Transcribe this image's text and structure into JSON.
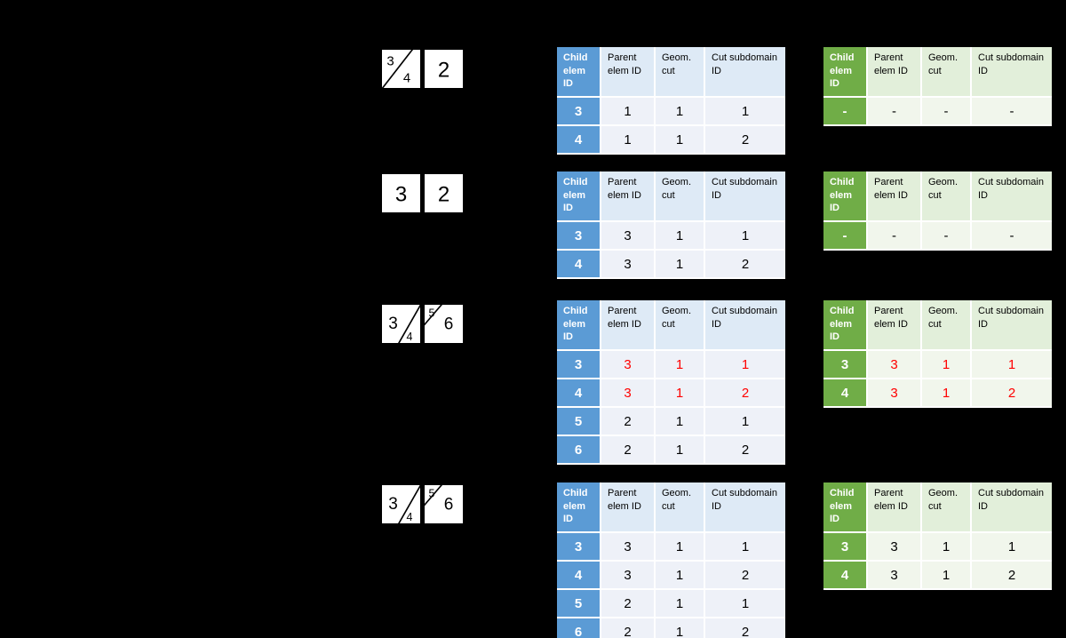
{
  "colors": {
    "background": "#000000",
    "blue_accent": "#5B9BD5",
    "blue_header_light": "#DEEAF6",
    "blue_row_light": "#EEF1F8",
    "green_accent": "#70AD47",
    "green_header_light": "#E2EFDA",
    "green_row_light": "#F1F6EC",
    "highlight_red": "#FF0000",
    "separator_white": "#FFFFFF"
  },
  "header_labels": [
    "Child elem ID",
    "Parent elem ID",
    "Geom. cut",
    "Cut subdomain ID"
  ],
  "sections": [
    {
      "diagram": {
        "left_square": {
          "cut": "diagonal-full",
          "labels": [
            "3",
            "4"
          ]
        },
        "right_square": {
          "cut": "none",
          "labels": [
            "2"
          ]
        }
      },
      "blue_table": {
        "rows": [
          [
            "3",
            "1",
            "1",
            "1"
          ],
          [
            "4",
            "1",
            "1",
            "2"
          ]
        ],
        "red_rows": []
      },
      "green_table": {
        "rows": [
          [
            "-",
            "-",
            "-",
            "-"
          ]
        ],
        "red_rows": []
      }
    },
    {
      "diagram": {
        "left_square": {
          "cut": "none",
          "labels": [
            "3"
          ]
        },
        "right_square": {
          "cut": "none",
          "labels": [
            "2"
          ]
        }
      },
      "blue_table": {
        "rows": [
          [
            "3",
            "3",
            "1",
            "1"
          ],
          [
            "4",
            "3",
            "1",
            "2"
          ]
        ],
        "red_rows": []
      },
      "green_table": {
        "rows": [
          [
            "-",
            "-",
            "-",
            "-"
          ]
        ],
        "red_rows": []
      }
    },
    {
      "diagram": {
        "left_square": {
          "cut": "corner-br",
          "labels": [
            "3",
            "4"
          ]
        },
        "right_square": {
          "cut": "corner-tl",
          "labels": [
            "5",
            "6"
          ]
        }
      },
      "blue_table": {
        "rows": [
          [
            "3",
            "3",
            "1",
            "1"
          ],
          [
            "4",
            "3",
            "1",
            "2"
          ],
          [
            "5",
            "2",
            "1",
            "1"
          ],
          [
            "6",
            "2",
            "1",
            "2"
          ]
        ],
        "red_rows": [
          0,
          1
        ]
      },
      "green_table": {
        "rows": [
          [
            "3",
            "3",
            "1",
            "1"
          ],
          [
            "4",
            "3",
            "1",
            "2"
          ]
        ],
        "red_rows": [
          0,
          1
        ]
      }
    },
    {
      "diagram": {
        "left_square": {
          "cut": "corner-br",
          "labels": [
            "3",
            "4"
          ]
        },
        "right_square": {
          "cut": "corner-tl",
          "labels": [
            "5",
            "6"
          ]
        }
      },
      "blue_table": {
        "rows": [
          [
            "3",
            "3",
            "1",
            "1"
          ],
          [
            "4",
            "3",
            "1",
            "2"
          ],
          [
            "5",
            "2",
            "1",
            "1"
          ],
          [
            "6",
            "2",
            "1",
            "2"
          ]
        ],
        "red_rows": []
      },
      "green_table": {
        "rows": [
          [
            "3",
            "3",
            "1",
            "1"
          ],
          [
            "4",
            "3",
            "1",
            "2"
          ]
        ],
        "red_rows": []
      }
    }
  ]
}
